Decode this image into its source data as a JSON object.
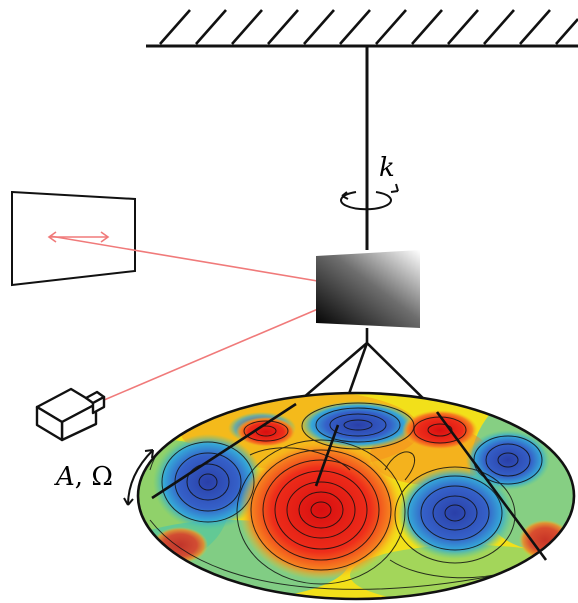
{
  "labels": {
    "stiffness": "k",
    "forcing_amplitude": "A",
    "forcing_separator": ", ",
    "forcing_frequency": "Ω"
  },
  "colors": {
    "laser": "#f07a7a",
    "line": "#111111",
    "vortex_hot": "#e31a1c",
    "vortex_cold": "#2b4fb0",
    "field_mid": "#f2e01a",
    "field_cool": "#4fc7a0"
  },
  "icons": {
    "ceiling": "hatched-ceiling-icon",
    "torsion_arrow": "rotation-arrow-icon",
    "mirror": "mirror-icon",
    "screen": "projection-screen-icon",
    "camera": "camera-icon",
    "oscillation_arrow": "curved-double-arrow-icon",
    "disk": "vortex-flow-disk-icon"
  }
}
